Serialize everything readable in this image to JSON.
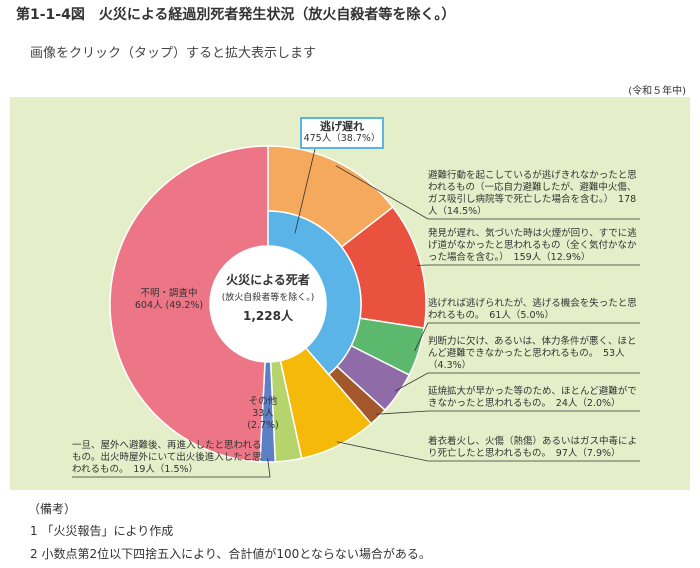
{
  "page_title": "第1-1-4図　火災による経過別死者発生状況（放火自殺者等を除く。）",
  "subtitle": "画像をクリック（タップ）すると拡大表示します",
  "period": "(令和５年中)",
  "chart_data": {
    "type": "donut",
    "center_title": "火災による死者",
    "center_subtitle": "(放火自殺者等を除く。)",
    "total": 1228,
    "total_label": "1,228人",
    "inner": {
      "name": "逃げ遅れ",
      "value": 475,
      "value_label": "475人（38.7%）",
      "color": "#5bb4e8"
    },
    "categories": [
      "避難行動を起こしているが逃げきれなかったと思われるもの（一応自力避難したが、避難中火傷、ガス吸引し病院等で死亡した場合を含む。）",
      "発見が遅れ、気づいた時は火煙が回り、すでに逃げ道がなかったと思われるもの（全く気付かなかった場合を含む。）",
      "逃げれば逃げられたが、逃げる機会を失ったと思われるもの。",
      "判断力に欠け、あるいは、体力条件が悪く、ほとんど避難できなかったと思われるもの。",
      "延焼拡大が早かった等のため、ほとんど避難ができなかったと思われるもの。",
      "着衣着火し、火傷（熱傷）あるいはガス中毒により死亡したと思われるもの。",
      "その他",
      "一旦、屋外へ避難後、再進入したと思われるもの。出火時屋外にいて出火後進入したと思われるもの。",
      "不明・調査中"
    ],
    "values": [
      178,
      159,
      61,
      53,
      24,
      97,
      33,
      19,
      604
    ],
    "value_labels": [
      "178人（14.5%）",
      "159人（12.9%）",
      "61人（5.0%）",
      "53人（4.3%）",
      "24人（2.0%）",
      "97人（7.9%）",
      "33人 (2.7%)",
      "19人（1.5%）",
      "604人 (49.2%)"
    ],
    "colors": [
      "#f4a95c",
      "#e8523f",
      "#5cb86c",
      "#8f6ba8",
      "#a3582c",
      "#f5b90a",
      "#b5d46c",
      "#5d7fc6",
      "#ec7686"
    ]
  },
  "notes": [
    "（備考）",
    "1 「火災報告」により作成",
    "2 小数点第2位以下四捨五入により、合計値が100とならない場合がある。"
  ]
}
